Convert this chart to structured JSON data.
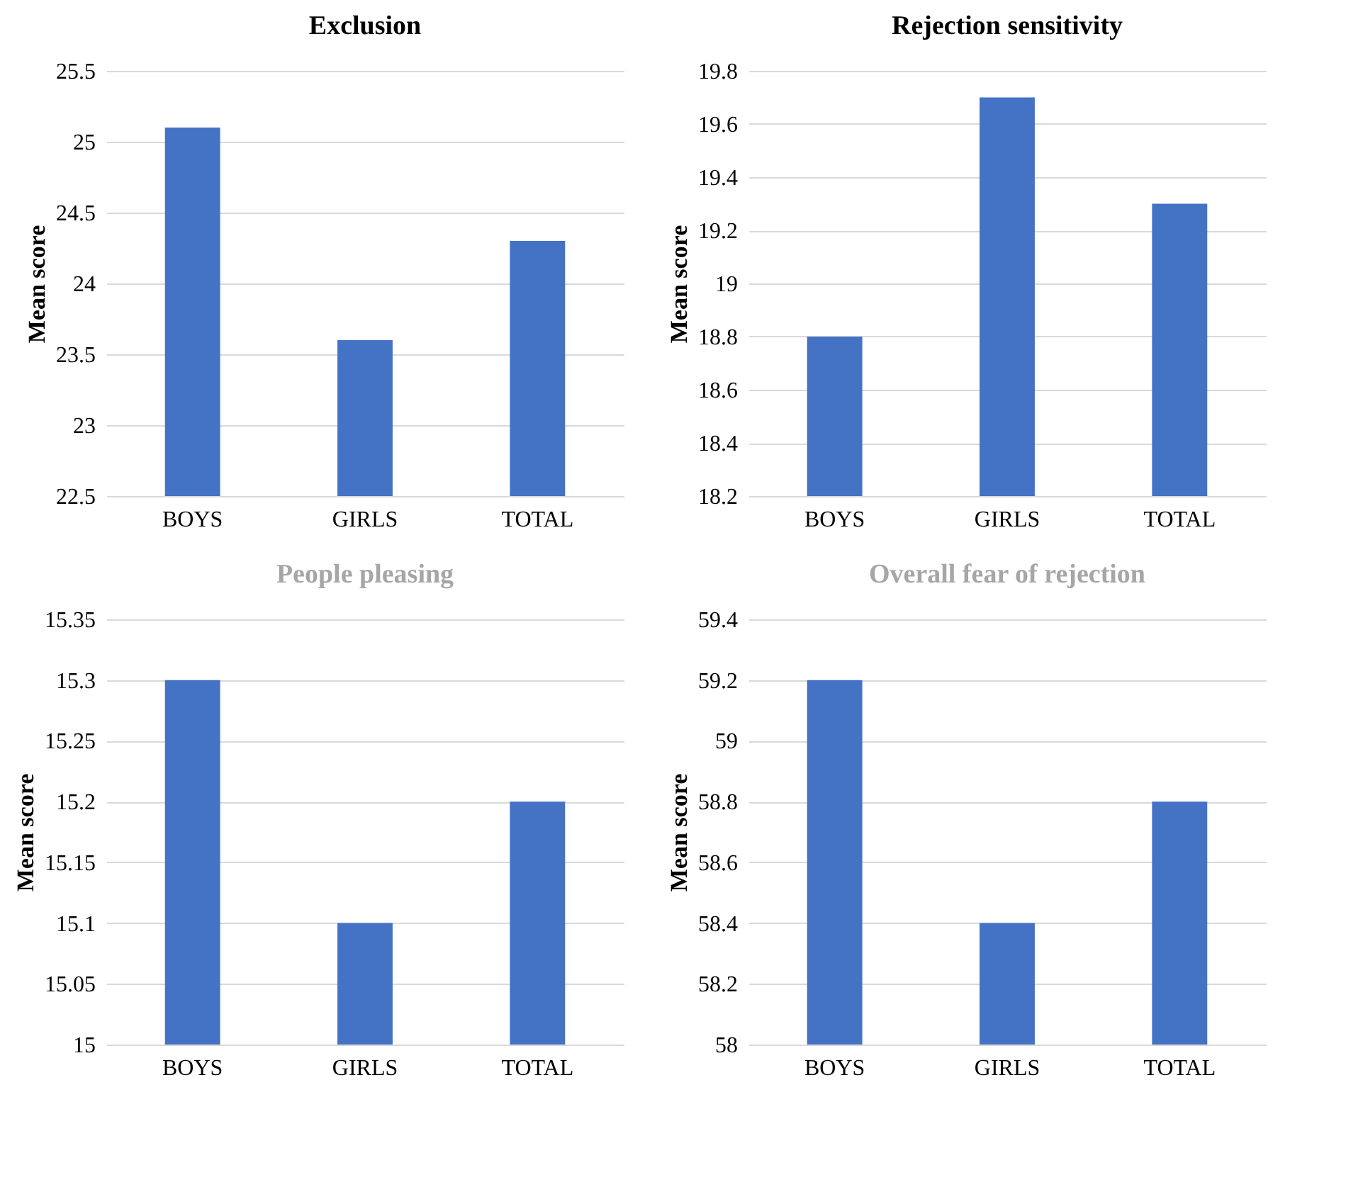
{
  "chart_data": [
    {
      "type": "bar",
      "title": "Exclusion",
      "ylabel": "Mean score",
      "categories": [
        "BOYS",
        "GIRLS",
        "TOTAL"
      ],
      "values": [
        25.1,
        23.6,
        24.3
      ],
      "color": "#4472c4",
      "ylim": [
        22.5,
        25.5
      ],
      "yticks": [
        22.5,
        23,
        23.5,
        24,
        24.5,
        25,
        25.5
      ],
      "grid": "y"
    },
    {
      "type": "bar",
      "title": "Rejection sensitivity",
      "ylabel": "Mean score",
      "categories": [
        "BOYS",
        "GIRLS",
        "TOTAL"
      ],
      "values": [
        18.8,
        19.7,
        19.3
      ],
      "color": "#4472c4",
      "ylim": [
        18.2,
        19.8
      ],
      "yticks": [
        18.2,
        18.4,
        18.6,
        18.8,
        19,
        19.2,
        19.4,
        19.6,
        19.8
      ],
      "grid": "y"
    },
    {
      "type": "bar",
      "title": "People pleasing",
      "ylabel": "Mean score",
      "categories": [
        "BOYS",
        "GIRLS",
        "TOTAL"
      ],
      "values": [
        15.3,
        15.1,
        15.2
      ],
      "color": "#4472c4",
      "ylim": [
        15,
        15.35
      ],
      "yticks": [
        15,
        15.05,
        15.1,
        15.15,
        15.2,
        15.25,
        15.3,
        15.35
      ],
      "grid": "y"
    },
    {
      "type": "bar",
      "title": "Overall fear of rejection",
      "ylabel": "Mean score",
      "categories": [
        "BOYS",
        "GIRLS",
        "TOTAL"
      ],
      "values": [
        59.2,
        58.4,
        58.8
      ],
      "color": "#4472c4",
      "ylim": [
        58,
        59.4
      ],
      "yticks": [
        58,
        58.2,
        58.4,
        58.6,
        58.8,
        59,
        59.2,
        59.4
      ],
      "grid": "y"
    }
  ]
}
